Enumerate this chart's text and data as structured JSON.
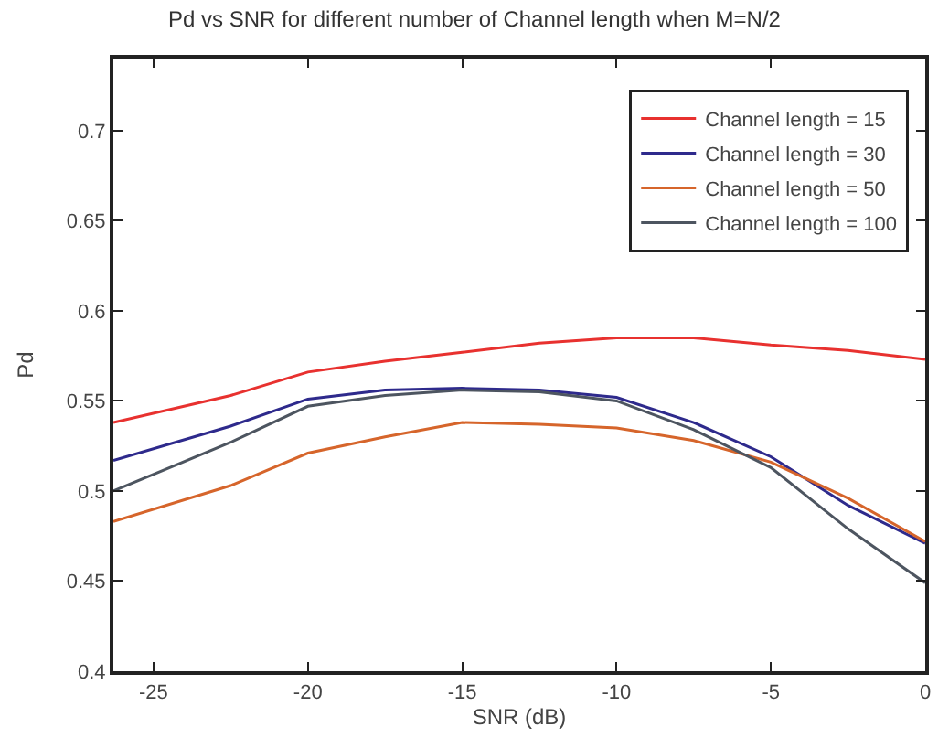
{
  "chart_data": {
    "type": "line",
    "title": "Pd vs SNR for different number of Channel length when M=N/2",
    "xlabel": "SNR (dB)",
    "ylabel": "Pd",
    "x": [
      -26.3,
      -22.5,
      -20,
      -17.5,
      -15,
      -12.5,
      -10,
      -7.5,
      -5,
      -2.5,
      0
    ],
    "series": [
      {
        "name": "Channel length = 15",
        "color": "#e8312f",
        "values": [
          0.538,
          0.553,
          0.566,
          0.572,
          0.577,
          0.582,
          0.585,
          0.585,
          0.581,
          0.578,
          0.573
        ]
      },
      {
        "name": "Channel length = 30",
        "color": "#2e2a8c",
        "values": [
          0.517,
          0.536,
          0.551,
          0.556,
          0.557,
          0.556,
          0.552,
          0.538,
          0.519,
          0.492,
          0.471
        ]
      },
      {
        "name": "Channel length = 50",
        "color": "#d6652b",
        "values": [
          0.483,
          0.503,
          0.521,
          0.53,
          0.538,
          0.537,
          0.535,
          0.528,
          0.516,
          0.496,
          0.472
        ]
      },
      {
        "name": "Channel length = 100",
        "color": "#4d5560",
        "values": [
          0.5,
          0.527,
          0.547,
          0.553,
          0.556,
          0.555,
          0.55,
          0.534,
          0.513,
          0.479,
          0.449
        ]
      }
    ],
    "xlim": [
      -26.3,
      0
    ],
    "ylim": [
      0.4,
      0.74
    ],
    "xticks": [
      -25,
      -20,
      -15,
      -10,
      -5,
      0
    ],
    "yticks": [
      0.4,
      0.45,
      0.5,
      0.55,
      0.6,
      0.65,
      0.7
    ],
    "legend": "top right",
    "line_style": "solid"
  }
}
